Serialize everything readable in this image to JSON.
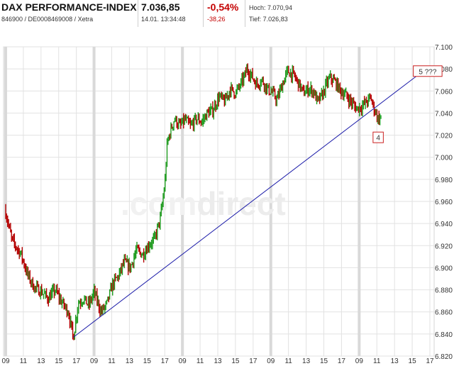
{
  "header": {
    "name": "DAX PERFORMANCE-INDEX",
    "ids": "846900 / DE0008469008 / Xetra",
    "price": "7.036,85",
    "timestamp": "14.01. 13:34:48",
    "change_pct": "-0,54%",
    "change_abs": "-38,26",
    "high": "Hoch: 7.070,94",
    "low": "Tief: 7.026,83"
  },
  "watermark": {
    "pre": ".com",
    "post": "direct"
  },
  "colors": {
    "up": "#1f9b1f",
    "down": "#b40000",
    "trendline": "#1a1aa8",
    "grid": "#e2e2e2",
    "day_band": "#d9d9d9",
    "label_border": "#cc2222"
  },
  "chart_data": {
    "type": "ohlc",
    "title": "",
    "xlabel": "",
    "ylabel": "",
    "ylim": [
      6820,
      7100
    ],
    "yticks": [
      6820,
      6840,
      6860,
      6880,
      6900,
      6920,
      6940,
      6960,
      6980,
      7000,
      7020,
      7040,
      7060,
      7080,
      7100
    ],
    "ytick_labels": [
      "6.820",
      "6.840",
      "6.860",
      "6.880",
      "6.900",
      "6.920",
      "6.940",
      "6.960",
      "6.980",
      "7.000",
      "7.020",
      "7.040",
      "7.060",
      "7.080",
      "7.100"
    ],
    "xtick_labels": [
      "09",
      "11",
      "13",
      "15",
      "17",
      "09",
      "11",
      "13",
      "15",
      "17",
      "09",
      "11",
      "13",
      "15",
      "17",
      "09",
      "11",
      "13",
      "15",
      "17",
      "09",
      "11",
      "13",
      "15",
      "17"
    ],
    "price_path": [
      [
        0,
        6950
      ],
      [
        1.4,
        6925
      ],
      [
        3.5,
        6912
      ],
      [
        5,
        6893
      ],
      [
        6.5,
        6882
      ],
      [
        8.2,
        6878
      ],
      [
        9.6,
        6872
      ],
      [
        11.2,
        6880
      ],
      [
        12.5,
        6870
      ],
      [
        14.2,
        6860
      ],
      [
        15.3,
        6836
      ],
      [
        16.4,
        6868
      ],
      [
        17.6,
        6872
      ],
      [
        18.8,
        6866
      ],
      [
        20,
        6878
      ],
      [
        21.6,
        6860
      ],
      [
        22.8,
        6866
      ],
      [
        24.2,
        6885
      ],
      [
        25.6,
        6893
      ],
      [
        26.8,
        6905
      ],
      [
        28.2,
        6900
      ],
      [
        29.6,
        6916
      ],
      [
        31,
        6912
      ],
      [
        32.6,
        6922
      ],
      [
        33.6,
        6925
      ],
      [
        34.4,
        6936
      ],
      [
        35,
        6945
      ],
      [
        35.6,
        6962
      ],
      [
        36.1,
        6980
      ],
      [
        36.5,
        7010
      ],
      [
        37,
        7020
      ],
      [
        38.2,
        7035
      ],
      [
        39.4,
        7028
      ],
      [
        40.6,
        7034
      ],
      [
        41.8,
        7028
      ],
      [
        43.2,
        7035
      ],
      [
        44.4,
        7032
      ],
      [
        45.6,
        7040
      ],
      [
        46.8,
        7042
      ],
      [
        48.3,
        7055
      ],
      [
        49.6,
        7050
      ],
      [
        50.8,
        7062
      ],
      [
        52,
        7058
      ],
      [
        53.2,
        7066
      ],
      [
        54.1,
        7074
      ],
      [
        54.6,
        7080
      ],
      [
        55.6,
        7074
      ],
      [
        56.8,
        7066
      ],
      [
        58,
        7070
      ],
      [
        59.2,
        7062
      ],
      [
        60.4,
        7058
      ],
      [
        61.4,
        7052
      ],
      [
        62.6,
        7066
      ],
      [
        63.8,
        7078
      ],
      [
        65.2,
        7074
      ],
      [
        66.4,
        7066
      ],
      [
        67.4,
        7058
      ],
      [
        68.6,
        7062
      ],
      [
        69.6,
        7060
      ],
      [
        70.6,
        7050
      ],
      [
        71.6,
        7056
      ],
      [
        72.6,
        7066
      ],
      [
        73.4,
        7072
      ],
      [
        74.6,
        7068
      ],
      [
        75.8,
        7060
      ],
      [
        77,
        7056
      ],
      [
        78.2,
        7050
      ],
      [
        79.4,
        7044
      ],
      [
        80.6,
        7046
      ],
      [
        81.6,
        7050
      ],
      [
        82.6,
        7054
      ],
      [
        83.2,
        7046
      ],
      [
        83.8,
        7040
      ],
      [
        84.4,
        7034
      ],
      [
        85,
        7038
      ]
    ],
    "x_extent": [
      0,
      96
    ],
    "trendline": {
      "from": [
        15.3,
        6837
      ],
      "to": [
        93.8,
        7076
      ]
    },
    "annotations": [
      {
        "label": "5 ???",
        "x": 95.5,
        "y": 7078
      },
      {
        "label": "4",
        "x": 84.3,
        "y": 7018
      }
    ]
  }
}
